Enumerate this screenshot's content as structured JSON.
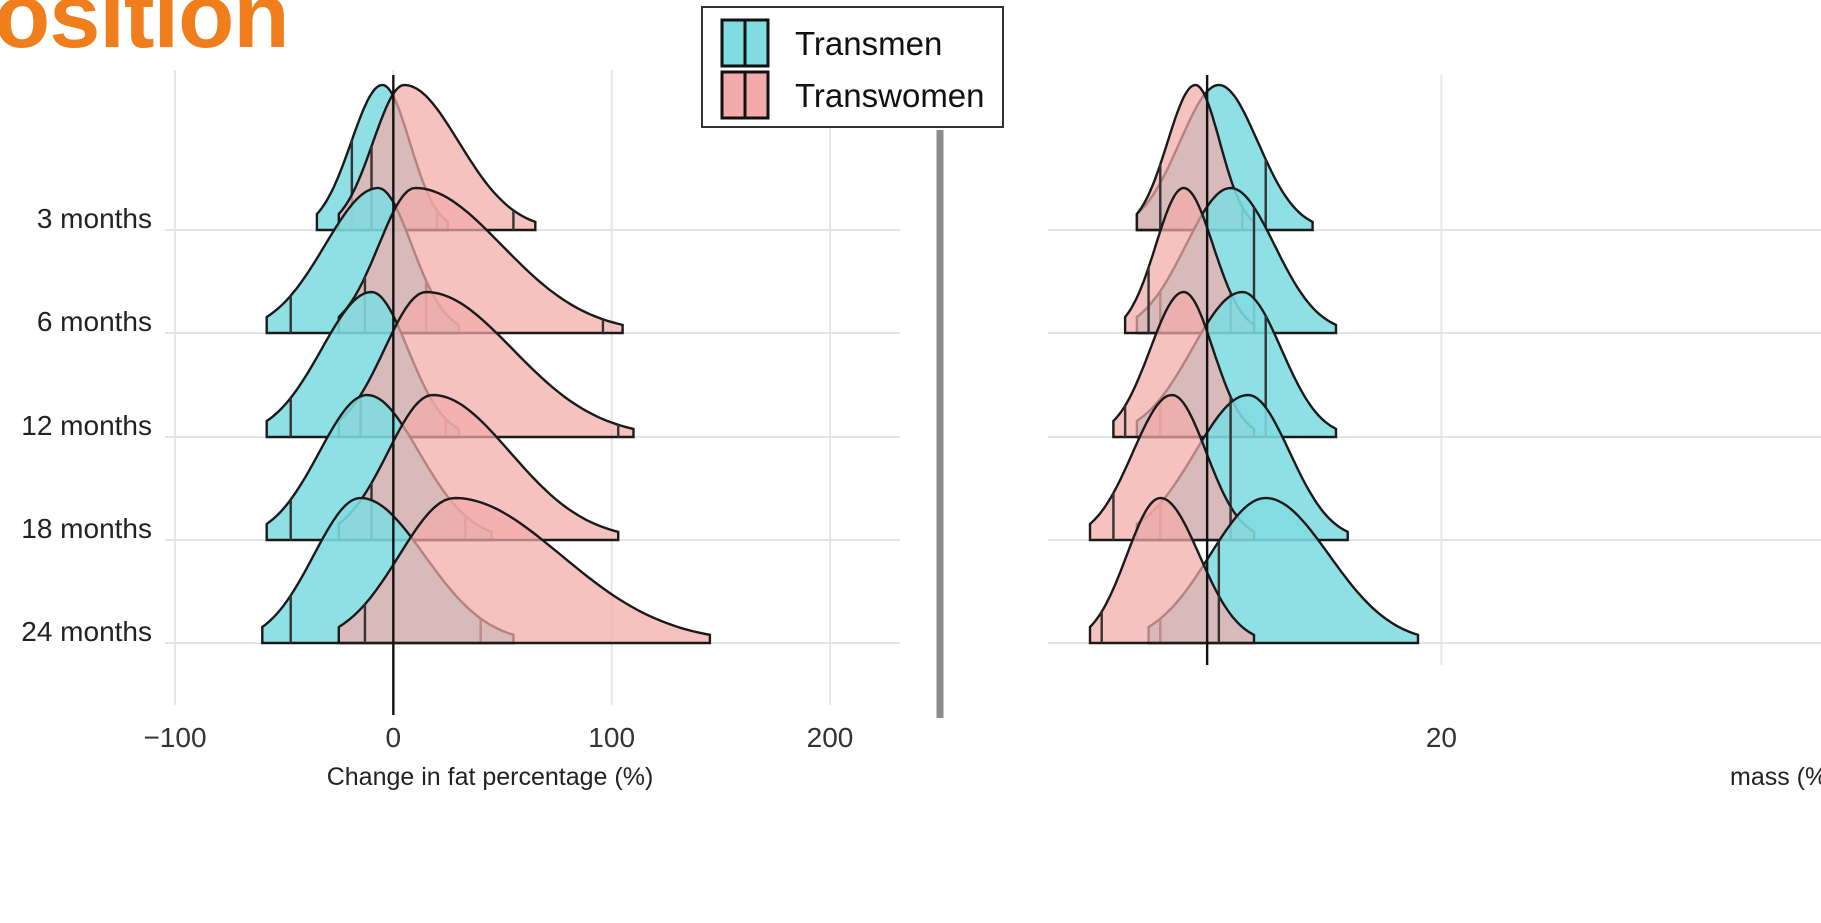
{
  "header": {
    "title_fragment": "osition"
  },
  "colors": {
    "transmen": "#7FDCE0",
    "transwomen": "#F2ABA8",
    "title": "#F07E1C"
  },
  "chart_data": [
    {
      "type": "ridgeline",
      "xlabel": "Change in fat percentage (%)",
      "xticks": [
        -100,
        0,
        100,
        200
      ],
      "xlim": [
        -100,
        200
      ],
      "categories": [
        "3 months",
        "6 months",
        "12 months",
        "18 months",
        "24 months"
      ],
      "legend": {
        "position": "top-center",
        "entries": [
          "Transmen",
          "Transwomen"
        ]
      },
      "series": [
        {
          "name": "Transmen",
          "color": "#7FDCE0",
          "mode": [
            -5,
            -7,
            -10,
            -12,
            -15
          ],
          "range_min": [
            -35,
            -58,
            -58,
            -58,
            -60
          ],
          "range_max": [
            25,
            30,
            30,
            45,
            55
          ],
          "quantiles": [
            [
              -19,
              20
            ],
            [
              -47,
              15
            ],
            [
              -47,
              24
            ],
            [
              -47,
              33
            ],
            [
              -47,
              40
            ]
          ]
        },
        {
          "name": "Transwomen",
          "color": "#F2ABA8",
          "mode": [
            5,
            10,
            15,
            18,
            28
          ],
          "range_min": [
            -25,
            -25,
            -25,
            -25,
            -25
          ],
          "range_max": [
            65,
            105,
            110,
            103,
            145
          ],
          "quantiles": [
            [
              -10,
              55
            ],
            [
              -13,
              96
            ],
            [
              -15,
              103
            ],
            [
              -10,
              null
            ],
            [
              -13,
              null
            ]
          ]
        }
      ]
    },
    {
      "type": "ridgeline",
      "xlabel": "mass (%)",
      "xticks": [
        20
      ],
      "xlim": [
        -10,
        25
      ],
      "categories": [
        "3 months",
        "6 months",
        "12 months",
        "18 months",
        "24 months"
      ],
      "series": [
        {
          "name": "Transmen",
          "color": "#7FDCE0",
          "mode": [
            1,
            2,
            3,
            3.5,
            5
          ],
          "range_min": [
            -6,
            -6,
            -6,
            -6,
            -5
          ],
          "range_max": [
            9,
            11,
            11,
            12,
            18
          ],
          "quantiles": [
            [
              -4,
              5
            ],
            [
              -4,
              4
            ],
            [
              -4,
              5
            ],
            [
              -4,
              2
            ],
            [
              -4,
              1
            ]
          ]
        },
        {
          "name": "Transwomen",
          "color": "#F2ABA8",
          "mode": [
            -1,
            -2,
            -2,
            -3,
            -4
          ],
          "range_min": [
            -6,
            -7,
            -8,
            -10,
            -10
          ],
          "range_max": [
            4,
            4,
            4,
            4,
            4
          ],
          "quantiles": [
            [
              -4,
              3
            ],
            [
              -5,
              2
            ],
            [
              -7,
              2
            ],
            [
              -8,
              2
            ],
            [
              -9,
              1
            ]
          ]
        }
      ]
    }
  ]
}
